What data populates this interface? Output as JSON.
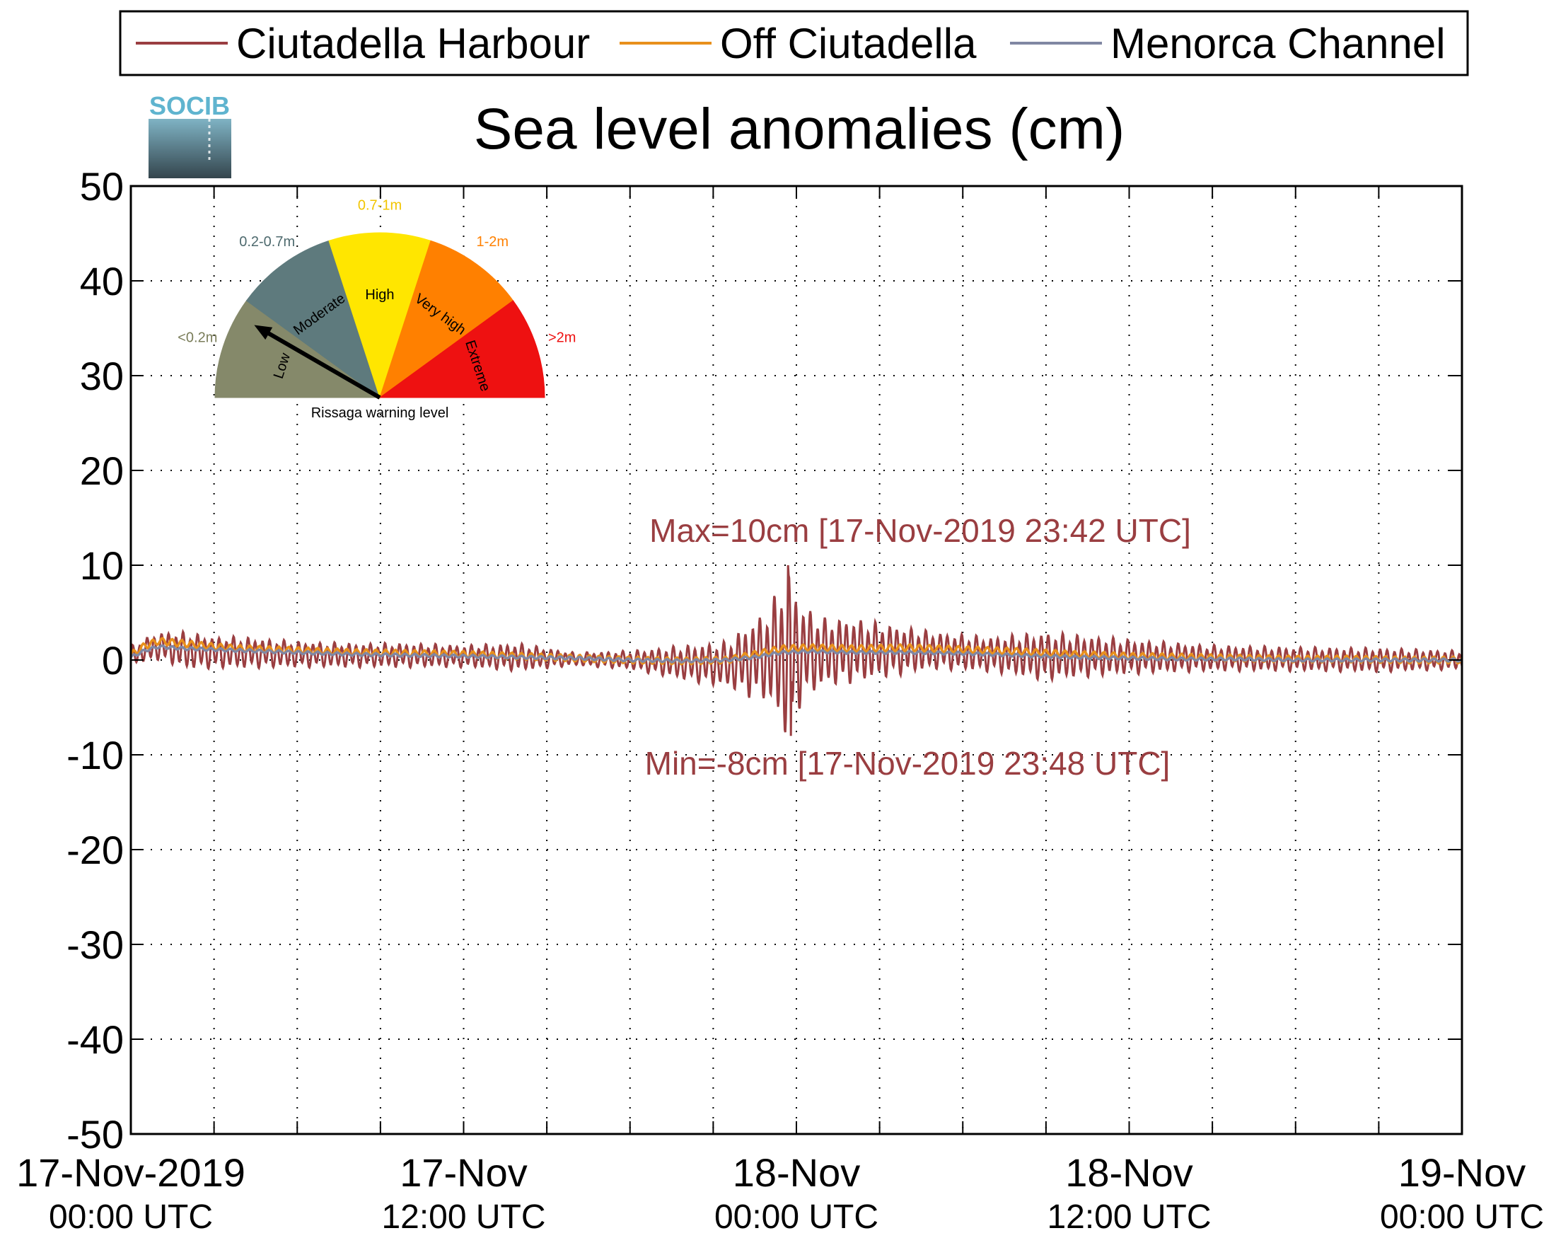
{
  "logo": {
    "text": "SOCIB"
  },
  "chart_data": {
    "type": "line",
    "title": "Sea level anomalies (cm)",
    "xlabel": "",
    "ylabel": "",
    "ylim": [
      -50,
      50
    ],
    "yticks": [
      "50",
      "40",
      "30",
      "20",
      "10",
      "0",
      "-10",
      "-20",
      "-30",
      "-40",
      "-50"
    ],
    "x_range_hours": [
      0,
      48
    ],
    "x_start": "17-Nov-2019 00:00 UTC",
    "x_end": "19-Nov-2019 00:00 UTC",
    "xticks": [
      {
        "hour": 0,
        "line1": "17-Nov-2019",
        "line2": "00:00 UTC"
      },
      {
        "hour": 12,
        "line1": "17-Nov",
        "line2": "12:00 UTC"
      },
      {
        "hour": 24,
        "line1": "18-Nov",
        "line2": "00:00 UTC"
      },
      {
        "hour": 36,
        "line1": "18-Nov",
        "line2": "12:00 UTC"
      },
      {
        "hour": 48,
        "line1": "19-Nov",
        "line2": "00:00 UTC"
      }
    ],
    "grid": true,
    "legend": {
      "placement": "top",
      "orientation": "horizontal"
    },
    "series": [
      {
        "name": "Ciutadella Harbour",
        "color": "#9a3e41",
        "envelope": [
          [
            0,
            0.5,
            1.5
          ],
          [
            1,
            1.5,
            3.0
          ],
          [
            2,
            1.0,
            3.0
          ],
          [
            3,
            0.8,
            2.5
          ],
          [
            4,
            0.8,
            2.5
          ],
          [
            6,
            0.6,
            2.0
          ],
          [
            8,
            0.5,
            1.8
          ],
          [
            10,
            0.5,
            1.8
          ],
          [
            12,
            0.4,
            1.6
          ],
          [
            14,
            0.3,
            1.8
          ],
          [
            16,
            0.1,
            0.8
          ],
          [
            18,
            0.0,
            1.0
          ],
          [
            20,
            -0.3,
            1.6
          ],
          [
            21.5,
            -0.5,
            2.0
          ],
          [
            22.3,
            0.0,
            4.0
          ],
          [
            23.0,
            0.5,
            5.5
          ],
          [
            23.7,
            0.5,
            10.0
          ],
          [
            24.2,
            0.8,
            6.0
          ],
          [
            25,
            0.8,
            4.5
          ],
          [
            26,
            1.0,
            4.5
          ],
          [
            27,
            1.0,
            4.0
          ],
          [
            28,
            1.0,
            3.5
          ],
          [
            29,
            1.0,
            3.0
          ],
          [
            31,
            0.6,
            2.5
          ],
          [
            33,
            0.4,
            3.0
          ],
          [
            35,
            0.4,
            2.5
          ],
          [
            37,
            0.3,
            2.0
          ],
          [
            39,
            0.2,
            1.6
          ],
          [
            42,
            0.1,
            1.4
          ],
          [
            45,
            0.0,
            1.3
          ],
          [
            48,
            0.0,
            1.0
          ]
        ],
        "max": {
          "value": 10,
          "time": "17-Nov-2019 23:42 UTC",
          "hour": 23.7
        },
        "min": {
          "value": -8,
          "time": "17-Nov-2019 23:48 UTC",
          "hour": 23.8
        }
      },
      {
        "name": "Off Ciutadella",
        "color": "#e8901c",
        "points": [
          [
            0,
            0.5
          ],
          [
            0.5,
            1.5
          ],
          [
            1,
            2.0
          ],
          [
            2,
            1.7
          ],
          [
            3,
            1.4
          ],
          [
            4,
            1.2
          ],
          [
            6,
            1.0
          ],
          [
            8,
            0.8
          ],
          [
            10,
            0.7
          ],
          [
            12,
            0.6
          ],
          [
            14,
            0.4
          ],
          [
            16,
            0.2
          ],
          [
            18,
            0.0
          ],
          [
            20,
            -0.1
          ],
          [
            21.5,
            0.0
          ],
          [
            22.5,
            0.6
          ],
          [
            23.5,
            1.2
          ],
          [
            24.5,
            1.3
          ],
          [
            26,
            1.2
          ],
          [
            28,
            1.3
          ],
          [
            30,
            1.1
          ],
          [
            32,
            0.9
          ],
          [
            34,
            0.6
          ],
          [
            36,
            0.4
          ],
          [
            38,
            0.3
          ],
          [
            40,
            0.2
          ],
          [
            42,
            0.1
          ],
          [
            44,
            0.1
          ],
          [
            46,
            0.0
          ],
          [
            48,
            0.0
          ]
        ]
      },
      {
        "name": "Menorca Channel",
        "color": "#8087a3",
        "points": [
          [
            0,
            0.3
          ],
          [
            0.5,
            1.0
          ],
          [
            1,
            1.4
          ],
          [
            2,
            1.2
          ],
          [
            3,
            1.1
          ],
          [
            4,
            1.0
          ],
          [
            6,
            0.8
          ],
          [
            8,
            0.6
          ],
          [
            10,
            0.5
          ],
          [
            12,
            0.4
          ],
          [
            14,
            0.3
          ],
          [
            16,
            0.2
          ],
          [
            18,
            0.0
          ],
          [
            20,
            -0.1
          ],
          [
            21.5,
            0.0
          ],
          [
            22.5,
            0.3
          ],
          [
            23.5,
            0.8
          ],
          [
            24.5,
            0.9
          ],
          [
            26,
            0.8
          ],
          [
            28,
            0.8
          ],
          [
            30,
            0.7
          ],
          [
            32,
            0.5
          ],
          [
            34,
            0.3
          ],
          [
            36,
            0.2
          ],
          [
            38,
            0.1
          ],
          [
            40,
            0.1
          ],
          [
            42,
            0.0
          ],
          [
            44,
            0.0
          ],
          [
            46,
            0.0
          ],
          [
            48,
            0.0
          ]
        ]
      }
    ],
    "annotations": {
      "max_label": "Max=10cm [17-Nov-2019 23:42 UTC]",
      "min_label": "Min=-8cm [17-Nov-2019 23:48 UTC]",
      "color": "#9a3e41"
    }
  },
  "gauge": {
    "caption": "Rissaga warning level",
    "pointer_level": "Low",
    "segments": [
      {
        "label": "Low",
        "range": "<0.2m",
        "color": "#85896a",
        "range_color": "#7a7d5a"
      },
      {
        "label": "Moderate",
        "range": "0.2-0.7m",
        "color": "#5e7a7d",
        "range_color": "#4e6a6e"
      },
      {
        "label": "High",
        "range": "0.7-1m",
        "color": "#ffe600",
        "range_color": "#f2c500"
      },
      {
        "label": "Very high",
        "range": "1-2m",
        "color": "#ff8000",
        "range_color": "#ff8000"
      },
      {
        "label": "Extreme",
        "range": ">2m",
        "color": "#ee1111",
        "range_color": "#ee1111"
      }
    ]
  }
}
